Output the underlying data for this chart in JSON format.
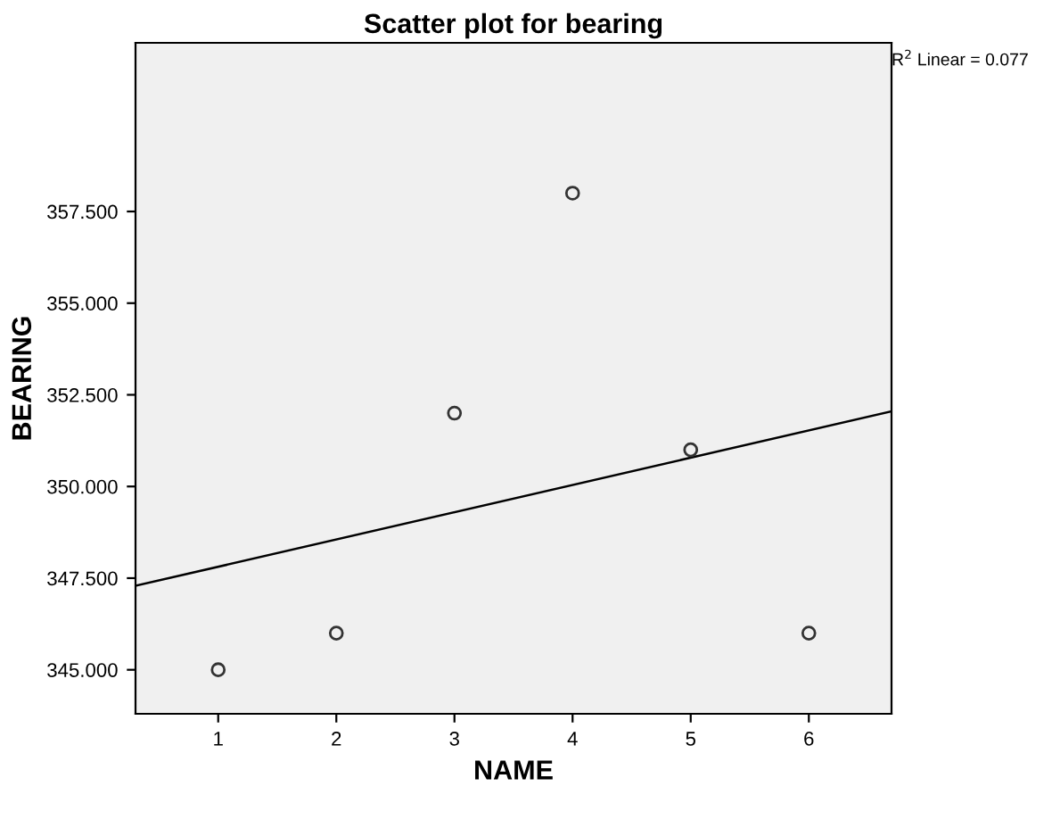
{
  "chart_data": {
    "type": "scatter",
    "title": "Scatter plot for bearing",
    "xlabel": "NAME",
    "ylabel": "BEARING",
    "x": [
      1,
      2,
      3,
      4,
      5,
      6
    ],
    "series": [
      {
        "color": "#333333",
        "values": [
          345,
          346,
          352,
          358,
          351,
          346
        ],
        "marker": "circle"
      },
      {
        "type": "line",
        "color": "#000000",
        "x": [
          0.3,
          6.7
        ],
        "values": [
          347.29,
          352.05
        ],
        "marker": "none",
        "line_style": "solid"
      }
    ],
    "xlim": [
      0.3,
      6.7
    ],
    "ylim": [
      343.8,
      362.1
    ],
    "xticks": [
      1,
      2,
      3,
      4,
      5,
      6
    ],
    "yticks": [
      {
        "value": 345,
        "label": "345.000"
      },
      {
        "value": 347.5,
        "label": "347.500"
      },
      {
        "value": 350,
        "label": "350.000"
      },
      {
        "value": 352.5,
        "label": "352.500"
      },
      {
        "value": 355,
        "label": "355.000"
      },
      {
        "value": 357.5,
        "label": "357.500"
      }
    ],
    "annotations": [
      "R$^{2}$ Linear = 0.077"
    ],
    "grid": false,
    "legend": false
  }
}
